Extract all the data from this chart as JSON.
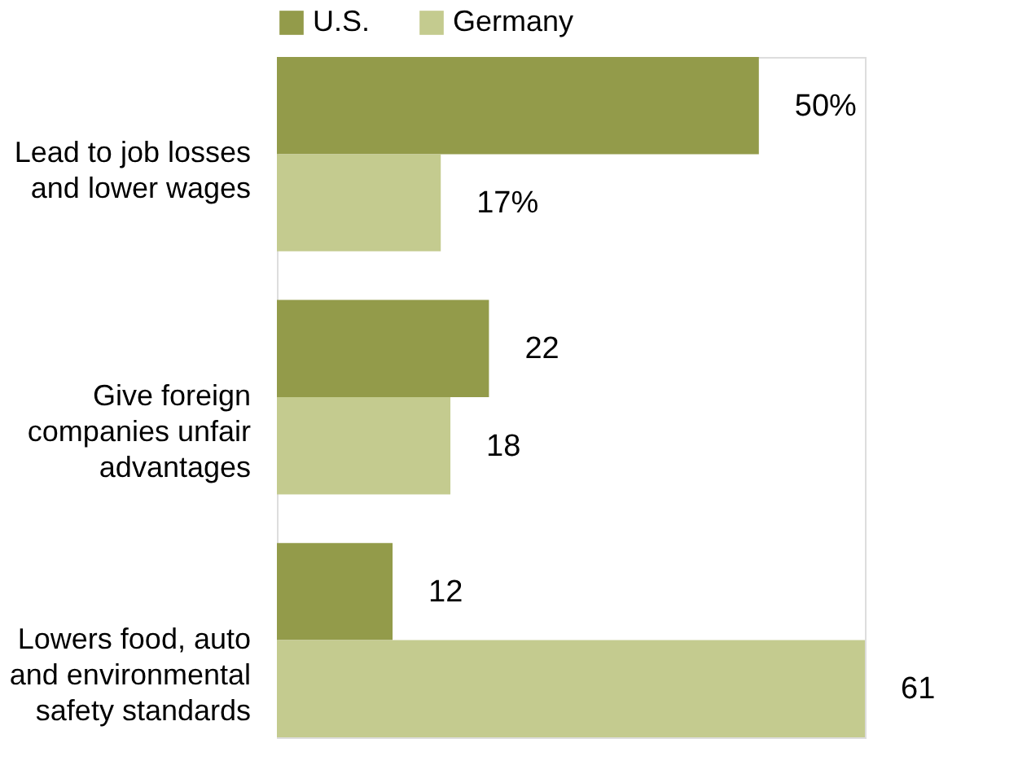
{
  "chart_data": {
    "type": "bar",
    "orientation": "horizontal",
    "categories": [
      "Lead to job losses\nand lower wages",
      "Give foreign\ncompanies unfair\nadvantages",
      "Lowers food, auto\nand environmental\nsafety standards"
    ],
    "series": [
      {
        "name": "U.S.",
        "color": "#939b4a",
        "values": [
          50,
          22,
          12
        ],
        "value_labels": [
          "50%",
          "22",
          "12"
        ]
      },
      {
        "name": "Germany",
        "color": "#c4cb8f",
        "values": [
          17,
          18,
          61
        ],
        "value_labels": [
          "17%",
          "18",
          "61"
        ]
      }
    ],
    "legend": "top",
    "tick_labels": "y"
  }
}
